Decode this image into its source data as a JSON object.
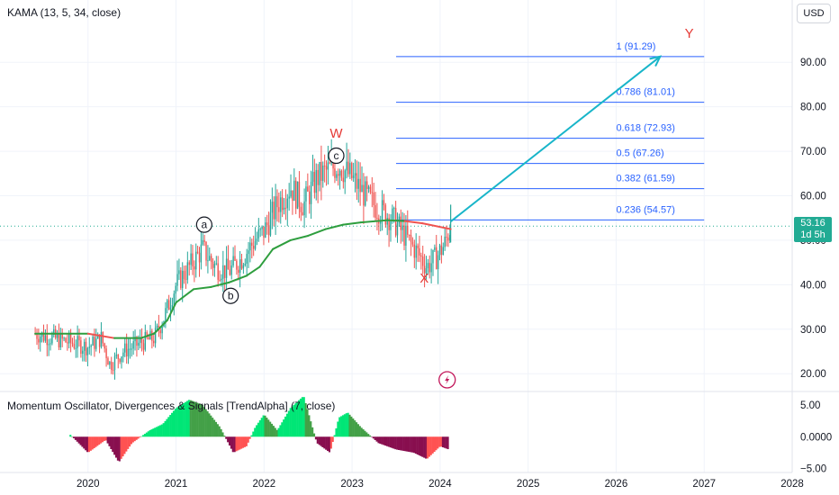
{
  "indicator_label": "KAMA (13, 5, 34, close)",
  "oscillator_label": "Momentum Oscillator, Divergences & Signals [TrendAlpha] (7, close)",
  "currency": "USD",
  "current_price": "53.16",
  "countdown": "1d 5h",
  "flash_icon": "lightning-icon",
  "colors": {
    "kama_up": "#2e9e3e",
    "kama_down": "#ef5350",
    "candle_up": "#26a69a",
    "candle_down": "#ef5350",
    "fib_line": "#2962ff",
    "projection_arrow": "#18b5c9",
    "wave_red": "#e53935",
    "hist_bull_bright": "#00e676",
    "hist_bull_dark": "#43a047",
    "hist_bear_bright": "#ff5252",
    "hist_bear_dark": "#880e4f"
  },
  "waves": {
    "W": "W",
    "X": "X",
    "Y": "Y",
    "a": "a",
    "b": "b",
    "c": "c"
  },
  "chart_data": {
    "type": "line",
    "price_axis": {
      "ticks": [
        "90.00",
        "80.00",
        "70.00",
        "60.00",
        "50.00",
        "40.00",
        "30.00",
        "20.00"
      ],
      "ylim": [
        16,
        104
      ]
    },
    "oscillator_axis": {
      "ticks": [
        "5.00",
        "0.0000",
        "−5.00"
      ],
      "ylim": [
        -5.6,
        6.8
      ]
    },
    "x_ticks": [
      "2020",
      "2021",
      "2022",
      "2023",
      "2024",
      "2025",
      "2026",
      "2027",
      "2028"
    ],
    "xlim": [
      2019.0,
      2028.0
    ],
    "fib_levels": [
      {
        "label": "1 (91.29)",
        "value": 91.29
      },
      {
        "label": "0.786 (81.01)",
        "value": 81.01
      },
      {
        "label": "0.618 (72.93)",
        "value": 72.93
      },
      {
        "label": "0.5 (67.26)",
        "value": 67.26
      },
      {
        "label": "0.382 (61.59)",
        "value": 61.59
      },
      {
        "label": "0.236 (54.57)",
        "value": 54.57
      }
    ],
    "fib_x_range": [
      2023.5,
      2027.0
    ],
    "projection": {
      "from": [
        2024.12,
        54.2
      ],
      "to": [
        2026.5,
        91.3
      ]
    },
    "wave_points": {
      "W": [
        2022.82,
        73.0
      ],
      "c": [
        2022.82,
        69.0
      ],
      "a": [
        2021.32,
        53.5
      ],
      "b": [
        2021.62,
        37.5
      ],
      "X": [
        2023.82,
        40.5
      ],
      "Y": [
        2026.83,
        95.5
      ]
    },
    "price_series": {
      "x": [
        2019.4,
        2019.6,
        2019.8,
        2020.0,
        2020.15,
        2020.25,
        2020.4,
        2020.6,
        2020.75,
        2020.85,
        2021.0,
        2021.15,
        2021.3,
        2021.45,
        2021.6,
        2021.75,
        2021.9,
        2022.0,
        2022.15,
        2022.3,
        2022.45,
        2022.6,
        2022.75,
        2022.85,
        2023.0,
        2023.15,
        2023.3,
        2023.45,
        2023.6,
        2023.75,
        2023.85,
        2023.95,
        2024.05,
        2024.12
      ],
      "values": [
        29,
        28,
        27,
        26,
        28,
        22,
        25,
        27,
        28,
        32,
        40,
        44,
        48,
        44,
        43,
        46,
        50,
        52,
        58,
        62,
        58,
        64,
        66,
        67,
        64,
        60,
        57,
        55,
        51,
        47,
        44,
        46,
        49,
        53.16
      ]
    },
    "kama_series": {
      "x": [
        2019.4,
        2019.8,
        2020.0,
        2020.3,
        2020.6,
        2020.75,
        2020.9,
        2021.0,
        2021.2,
        2021.4,
        2021.6,
        2021.8,
        2021.95,
        2022.1,
        2022.3,
        2022.5,
        2022.7,
        2022.9,
        2023.1,
        2023.4,
        2023.6,
        2023.8,
        2024.12
      ],
      "values": [
        29,
        29,
        29,
        28,
        28,
        29,
        32,
        36,
        39,
        39.5,
        40.5,
        42,
        44,
        48,
        50,
        51,
        52.5,
        53.5,
        54,
        54.5,
        54.3,
        53.8,
        52.5
      ]
    },
    "oscillator": {
      "x": [
        2019.8,
        2020.0,
        2020.2,
        2020.35,
        2020.5,
        2020.7,
        2020.85,
        2021.0,
        2021.15,
        2021.3,
        2021.5,
        2021.65,
        2021.8,
        2021.9,
        2022.0,
        2022.15,
        2022.3,
        2022.45,
        2022.6,
        2022.75,
        2022.85,
        2022.95,
        2023.1,
        2023.3,
        2023.5,
        2023.7,
        2023.85,
        2024.0,
        2024.1
      ],
      "values": [
        0.3,
        -2.5,
        -0.5,
        -4.0,
        -1.0,
        1.0,
        2.0,
        4.5,
        5.8,
        5.0,
        1.5,
        -2.5,
        -1.5,
        1.5,
        3.5,
        1.0,
        4.5,
        6.4,
        -1.0,
        -2.5,
        3.0,
        3.8,
        1.5,
        -1.0,
        -2.0,
        -2.5,
        -3.5,
        -1.5,
        -2.0
      ]
    }
  }
}
